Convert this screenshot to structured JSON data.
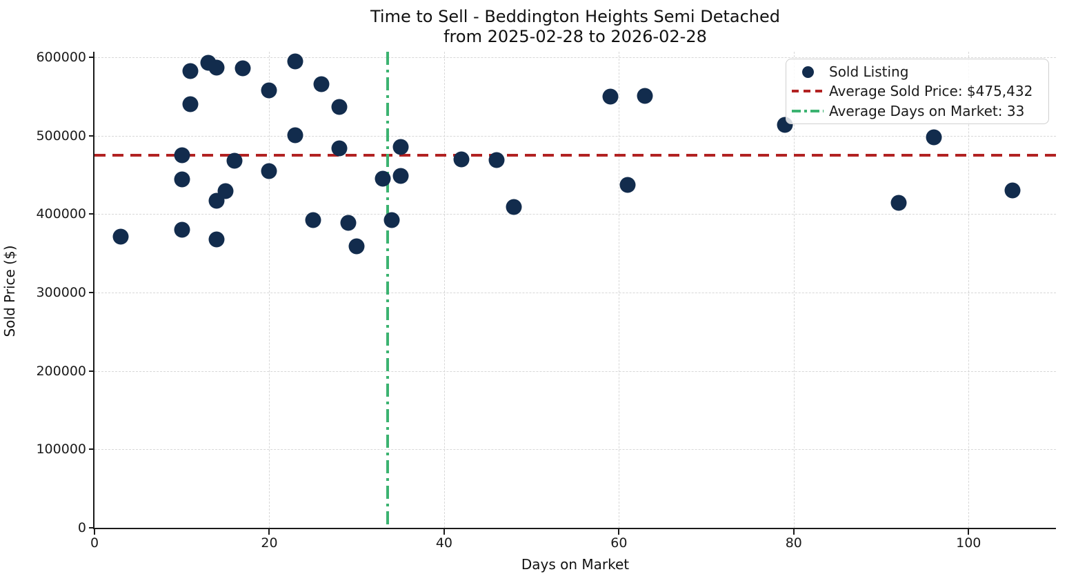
{
  "title": {
    "line1": "Time to Sell - Beddington Heights Semi Detached",
    "line2": "from 2025-02-28 to 2026-02-28"
  },
  "x_axis": {
    "label": "Days on Market"
  },
  "y_axis": {
    "label": "Sold Price ($)"
  },
  "legend": {
    "items": [
      {
        "label": "Sold Listing",
        "type": "dot",
        "color": "#122c4d"
      },
      {
        "label": "Average Sold Price: $475,432",
        "type": "dashed-line",
        "color": "#B22222"
      },
      {
        "label": "Average Days on Market: 33",
        "type": "dashdot-line",
        "color": "#3CB371"
      }
    ]
  },
  "chart_data": {
    "type": "scatter",
    "title": "Time to Sell - Beddington Heights Semi Detached from 2025-02-28 to 2026-02-28",
    "xlabel": "Days on Market",
    "ylabel": "Sold Price ($)",
    "xlim": [
      0,
      110
    ],
    "ylim": [
      0,
      607000
    ],
    "x_ticks": [
      0,
      20,
      40,
      60,
      80,
      100
    ],
    "y_ticks": [
      0,
      100000,
      200000,
      300000,
      400000,
      500000,
      600000
    ],
    "grid": true,
    "legend_position": "upper right",
    "series": [
      {
        "name": "Sold Listing",
        "type": "scatter",
        "color": "#122c4d",
        "points": [
          [
            3,
            371000
          ],
          [
            10,
            380000
          ],
          [
            10,
            444000
          ],
          [
            10,
            475000
          ],
          [
            11,
            540000
          ],
          [
            11,
            582000
          ],
          [
            13,
            593000
          ],
          [
            14,
            368000
          ],
          [
            14,
            417000
          ],
          [
            14,
            587000
          ],
          [
            15,
            429000
          ],
          [
            16,
            468000
          ],
          [
            17,
            586000
          ],
          [
            20,
            455000
          ],
          [
            20,
            558000
          ],
          [
            23,
            501000
          ],
          [
            23,
            595000
          ],
          [
            25,
            392000
          ],
          [
            26,
            566000
          ],
          [
            28,
            484000
          ],
          [
            28,
            537000
          ],
          [
            29,
            389000
          ],
          [
            30,
            359000
          ],
          [
            33,
            445000
          ],
          [
            34,
            392000
          ],
          [
            35,
            449000
          ],
          [
            35,
            486000
          ],
          [
            42,
            470000
          ],
          [
            46,
            469000
          ],
          [
            48,
            409000
          ],
          [
            59,
            550000
          ],
          [
            61,
            437000
          ],
          [
            63,
            551000
          ],
          [
            79,
            514000
          ],
          [
            92,
            414000
          ],
          [
            96,
            498000
          ],
          [
            105,
            430000
          ]
        ]
      },
      {
        "name": "Average Sold Price: $475,432",
        "type": "hline",
        "y": 475432,
        "color": "#B22222",
        "linestyle": "dashed"
      },
      {
        "name": "Average Days on Market: 33",
        "type": "vline",
        "x": 33.5,
        "color": "#3CB371",
        "linestyle": "dashdot"
      }
    ]
  }
}
